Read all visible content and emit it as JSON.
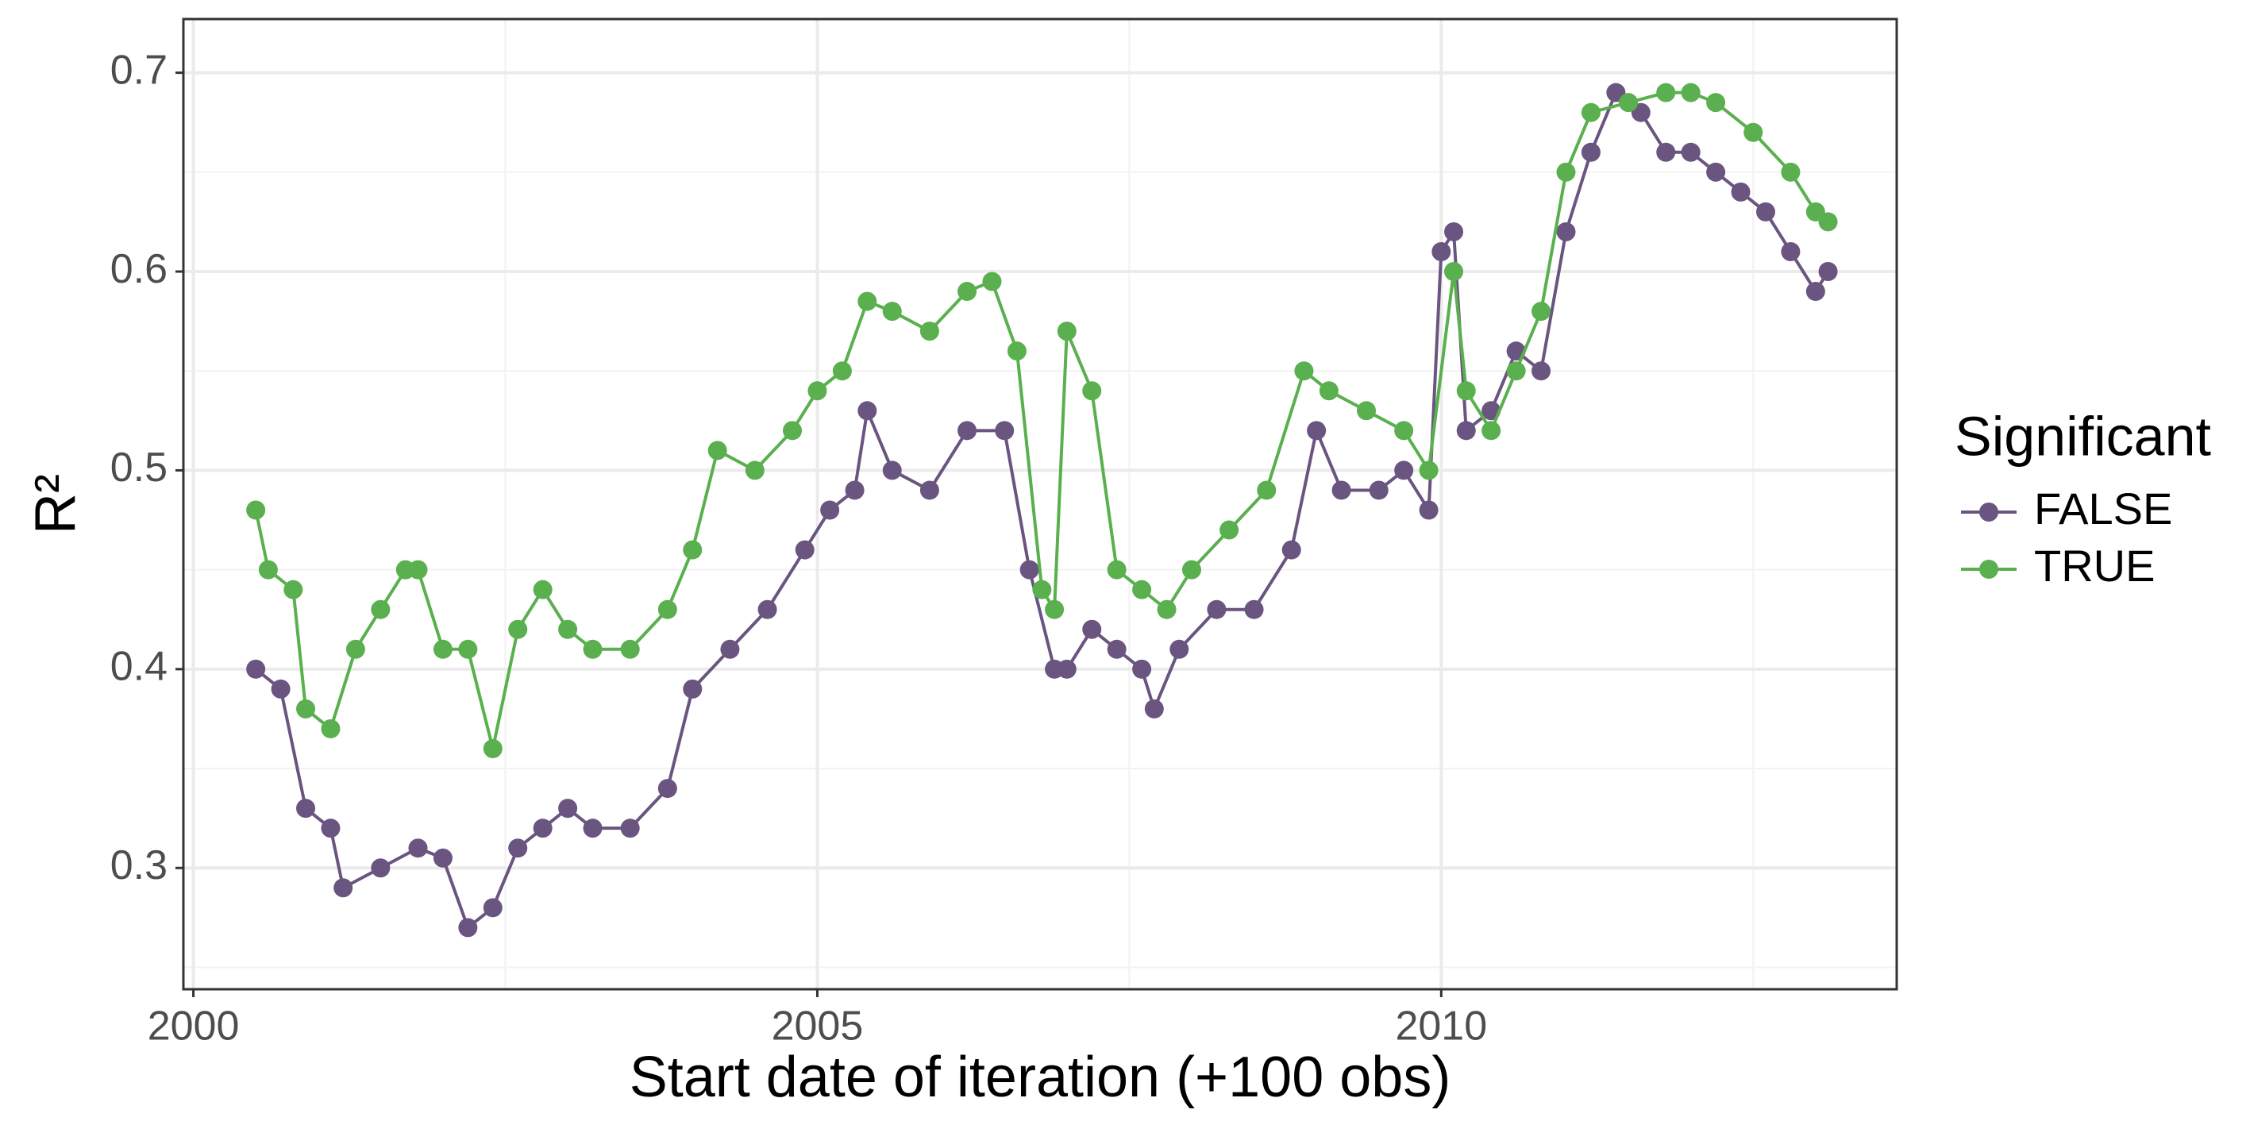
{
  "chart_data": {
    "type": "line",
    "x_label": "Start date of iteration (+100 obs)",
    "y_label": "R²",
    "legend_title": "Significant",
    "legend_position": "right",
    "grid": true,
    "xlim": [
      1999.92,
      2013.65
    ],
    "ylim": [
      0.239,
      0.727
    ],
    "xticks": [
      2000,
      2005,
      2010
    ],
    "yticks": [
      0.3,
      0.4,
      0.5,
      0.6,
      0.7
    ],
    "series": [
      {
        "name": "FALSE",
        "color": "#6a5480",
        "x": [
          2000.5,
          2000.7,
          2000.9,
          2001.1,
          2001.2,
          2001.5,
          2001.8,
          2002.0,
          2002.2,
          2002.4,
          2002.6,
          2002.8,
          2003.0,
          2003.2,
          2003.5,
          2003.8,
          2004.0,
          2004.3,
          2004.6,
          2004.9,
          2005.1,
          2005.3,
          2005.4,
          2005.6,
          2005.9,
          2006.2,
          2006.5,
          2006.7,
          2006.9,
          2007.0,
          2007.2,
          2007.4,
          2007.6,
          2007.7,
          2007.9,
          2008.2,
          2008.5,
          2008.8,
          2009.0,
          2009.2,
          2009.5,
          2009.7,
          2009.9,
          2010.0,
          2010.1,
          2010.2,
          2010.4,
          2010.6,
          2010.8,
          2011.0,
          2011.2,
          2011.4,
          2011.6,
          2011.8,
          2012.0,
          2012.2,
          2012.4,
          2012.6,
          2012.8,
          2013.0,
          2013.1
        ],
        "values": [
          0.4,
          0.39,
          0.33,
          0.32,
          0.29,
          0.3,
          0.31,
          0.305,
          0.27,
          0.28,
          0.31,
          0.32,
          0.33,
          0.32,
          0.32,
          0.34,
          0.39,
          0.41,
          0.43,
          0.46,
          0.48,
          0.49,
          0.53,
          0.5,
          0.49,
          0.52,
          0.52,
          0.45,
          0.4,
          0.4,
          0.42,
          0.41,
          0.4,
          0.38,
          0.41,
          0.43,
          0.43,
          0.46,
          0.52,
          0.49,
          0.49,
          0.5,
          0.48,
          0.61,
          0.62,
          0.52,
          0.53,
          0.56,
          0.55,
          0.62,
          0.66,
          0.69,
          0.68,
          0.66,
          0.66,
          0.65,
          0.64,
          0.63,
          0.61,
          0.59,
          0.6
        ]
      },
      {
        "name": "TRUE",
        "color": "#5aaf4f",
        "x": [
          2000.5,
          2000.6,
          2000.8,
          2000.9,
          2001.1,
          2001.3,
          2001.5,
          2001.7,
          2001.8,
          2002.0,
          2002.2,
          2002.4,
          2002.6,
          2002.8,
          2003.0,
          2003.2,
          2003.5,
          2003.8,
          2004.0,
          2004.2,
          2004.5,
          2004.8,
          2005.0,
          2005.2,
          2005.4,
          2005.6,
          2005.9,
          2006.2,
          2006.4,
          2006.6,
          2006.8,
          2006.9,
          2007.0,
          2007.2,
          2007.4,
          2007.6,
          2007.8,
          2008.0,
          2008.3,
          2008.6,
          2008.9,
          2009.1,
          2009.4,
          2009.7,
          2009.9,
          2010.1,
          2010.2,
          2010.4,
          2010.6,
          2010.8,
          2011.0,
          2011.2,
          2011.5,
          2011.8,
          2012.0,
          2012.2,
          2012.5,
          2012.8,
          2013.0,
          2013.1
        ],
        "values": [
          0.48,
          0.45,
          0.44,
          0.38,
          0.37,
          0.41,
          0.43,
          0.45,
          0.45,
          0.41,
          0.41,
          0.36,
          0.42,
          0.44,
          0.42,
          0.41,
          0.41,
          0.43,
          0.46,
          0.51,
          0.5,
          0.52,
          0.54,
          0.55,
          0.585,
          0.58,
          0.57,
          0.59,
          0.595,
          0.56,
          0.44,
          0.43,
          0.57,
          0.54,
          0.45,
          0.44,
          0.43,
          0.45,
          0.47,
          0.49,
          0.55,
          0.54,
          0.53,
          0.52,
          0.5,
          0.6,
          0.54,
          0.52,
          0.55,
          0.58,
          0.65,
          0.68,
          0.685,
          0.69,
          0.69,
          0.685,
          0.67,
          0.65,
          0.63,
          0.625
        ]
      }
    ]
  }
}
